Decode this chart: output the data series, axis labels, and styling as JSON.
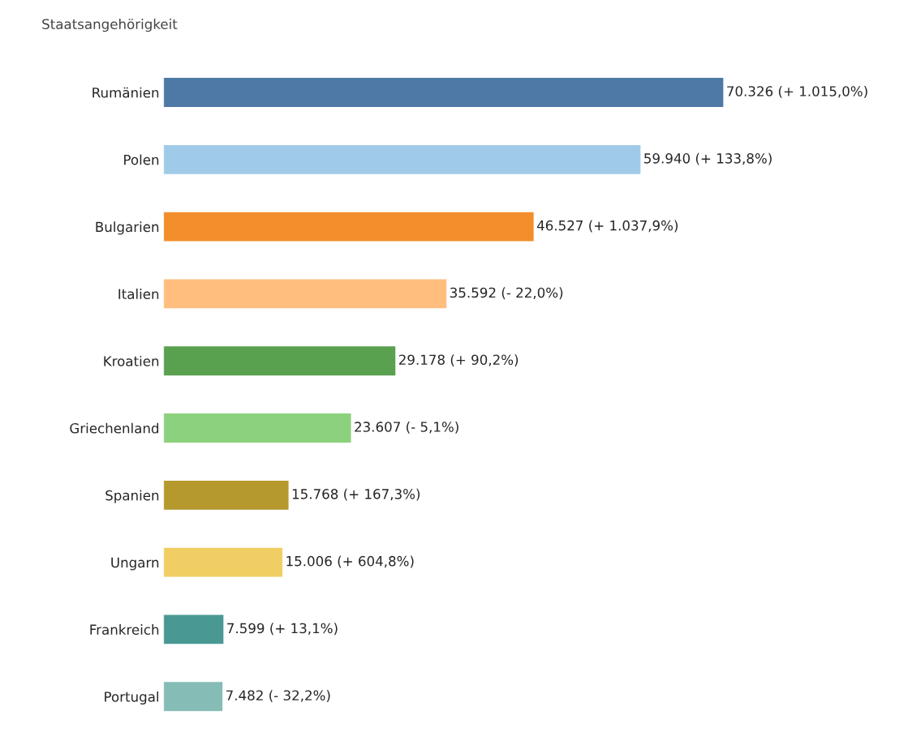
{
  "chart_data": {
    "type": "bar",
    "orientation": "horizontal",
    "ylabel": "Staatsangehörigkeit",
    "categories": [
      "Rumänien",
      "Polen",
      "Bulgarien",
      "Italien",
      "Kroatien",
      "Griechenland",
      "Spanien",
      "Ungarn",
      "Frankreich",
      "Portugal"
    ],
    "values": [
      70326,
      59940,
      46527,
      35592,
      29178,
      23607,
      15768,
      15006,
      7599,
      7482
    ],
    "colors": [
      "#4e79a7",
      "#a0cbe8",
      "#f28e2b",
      "#ffbe7d",
      "#59a14f",
      "#8cd17d",
      "#b6992d",
      "#f1ce63",
      "#499894",
      "#86bcb6"
    ],
    "value_labels": [
      "70.326 (+ 1.015,0%)",
      "59.940 (+ 133,8%)",
      "46.527 (+ 1.037,9%)",
      "35.592 (- 22,0%)",
      "29.178 (+ 90,2%)",
      "23.607 (- 5,1%)",
      "15.768 (+ 167,3%)",
      "15.006 (+ 604,8%)",
      "7.599 (+ 13,1%)",
      "7.482 (- 32,2%)"
    ],
    "tick_labels": "y",
    "grid": false,
    "legend": false
  }
}
